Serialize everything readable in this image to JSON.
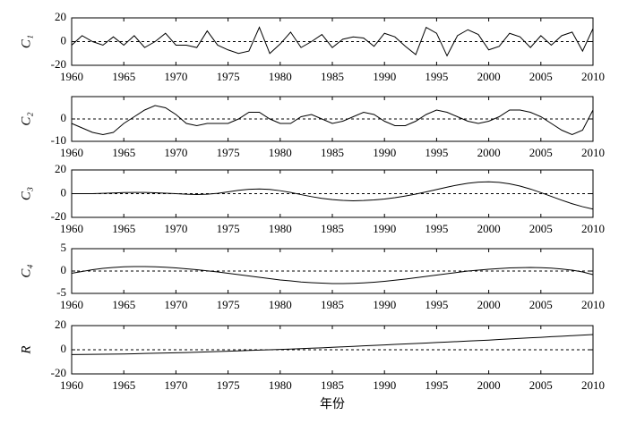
{
  "chart_data": [
    {
      "type": "line",
      "ylabel": "C₁",
      "color": "#000",
      "x": [
        1960,
        1961,
        1962,
        1963,
        1964,
        1965,
        1966,
        1967,
        1968,
        1969,
        1970,
        1971,
        1972,
        1973,
        1974,
        1975,
        1976,
        1977,
        1978,
        1979,
        1980,
        1981,
        1982,
        1983,
        1984,
        1985,
        1986,
        1987,
        1988,
        1989,
        1990,
        1991,
        1992,
        1993,
        1994,
        1995,
        1996,
        1997,
        1998,
        1999,
        2000,
        2001,
        2002,
        2003,
        2004,
        2005,
        2006,
        2007,
        2008,
        2009,
        2010
      ],
      "values": [
        -3,
        5,
        0,
        -3,
        4,
        -3,
        5,
        -5,
        0,
        7,
        -3,
        -3,
        -5,
        9,
        -3,
        -7,
        -10,
        -8,
        12,
        -10,
        -2,
        8,
        -5,
        0,
        6,
        -5,
        2,
        4,
        3,
        -4,
        7,
        4,
        -4,
        -11,
        12,
        7,
        -12,
        5,
        10,
        6,
        -7,
        -4,
        7,
        4,
        -5,
        5,
        -3,
        5,
        8,
        -8,
        11
      ],
      "xlim": [
        1960,
        2010
      ],
      "xticks": [
        1960,
        1965,
        1970,
        1975,
        1980,
        1985,
        1990,
        1995,
        2000,
        2005,
        2010
      ],
      "ylim": [
        -20,
        20
      ],
      "yticks": [
        -20,
        0,
        20
      ]
    },
    {
      "type": "line",
      "ylabel": "C₂",
      "color": "#000",
      "x": [
        1960,
        1961,
        1962,
        1963,
        1964,
        1965,
        1966,
        1967,
        1968,
        1969,
        1970,
        1971,
        1972,
        1973,
        1974,
        1975,
        1976,
        1977,
        1978,
        1979,
        1980,
        1981,
        1982,
        1983,
        1984,
        1985,
        1986,
        1987,
        1988,
        1989,
        1990,
        1991,
        1992,
        1993,
        1994,
        1995,
        1996,
        1997,
        1998,
        1999,
        2000,
        2001,
        2002,
        2003,
        2004,
        2005,
        2006,
        2007,
        2008,
        2009,
        2010
      ],
      "values": [
        -2,
        -4,
        -6,
        -7,
        -6,
        -2,
        1,
        4,
        6,
        5,
        2,
        -2,
        -3,
        -2,
        -2,
        -2,
        0,
        3,
        3,
        0,
        -2,
        -2,
        1,
        2,
        0,
        -2,
        -1,
        1,
        3,
        2,
        -1,
        -3,
        -3,
        -1,
        2,
        4,
        3,
        1,
        -1,
        -2,
        -1,
        1,
        4,
        4,
        3,
        1,
        -2,
        -5,
        -7,
        -5,
        4
      ],
      "xlim": [
        1960,
        2010
      ],
      "xticks": [
        1960,
        1965,
        1970,
        1975,
        1980,
        1985,
        1990,
        1995,
        2000,
        2005,
        2010
      ],
      "ylim": [
        -10,
        10
      ],
      "yticks": [
        -10,
        0
      ]
    },
    {
      "type": "line",
      "ylabel": "C₃",
      "color": "#000",
      "x": [
        1960,
        1961,
        1962,
        1963,
        1964,
        1965,
        1966,
        1967,
        1968,
        1969,
        1970,
        1971,
        1972,
        1973,
        1974,
        1975,
        1976,
        1977,
        1978,
        1979,
        1980,
        1981,
        1982,
        1983,
        1984,
        1985,
        1986,
        1987,
        1988,
        1989,
        1990,
        1991,
        1992,
        1993,
        1994,
        1995,
        1996,
        1997,
        1998,
        1999,
        2000,
        2001,
        2002,
        2003,
        2004,
        2005,
        2006,
        2007,
        2008,
        2009,
        2010
      ],
      "values": [
        0,
        0,
        0,
        0.3,
        0.6,
        0.9,
        1,
        1,
        0.8,
        0.4,
        0,
        -0.5,
        -0.8,
        -0.5,
        0.3,
        1.5,
        2.8,
        3.7,
        4,
        3.6,
        2.5,
        1,
        -0.8,
        -2.5,
        -4,
        -5,
        -5.7,
        -6,
        -5.8,
        -5.3,
        -4.5,
        -3.4,
        -2,
        -0.4,
        1.5,
        3.5,
        5.5,
        7.3,
        8.8,
        9.7,
        10,
        9.5,
        8.3,
        6.4,
        3.9,
        0.9,
        -2.3,
        -5.5,
        -8.5,
        -11,
        -13
      ],
      "xlim": [
        1960,
        2010
      ],
      "xticks": [
        1960,
        1965,
        1970,
        1975,
        1980,
        1985,
        1990,
        1995,
        2000,
        2005,
        2010
      ],
      "ylim": [
        -20,
        20
      ],
      "yticks": [
        -20,
        0,
        20
      ]
    },
    {
      "type": "line",
      "ylabel": "C₄",
      "color": "#000",
      "x": [
        1960,
        1961,
        1962,
        1963,
        1964,
        1965,
        1966,
        1967,
        1968,
        1969,
        1970,
        1971,
        1972,
        1973,
        1974,
        1975,
        1976,
        1977,
        1978,
        1979,
        1980,
        1981,
        1982,
        1983,
        1984,
        1985,
        1986,
        1987,
        1988,
        1989,
        1990,
        1991,
        1992,
        1993,
        1994,
        1995,
        1996,
        1997,
        1998,
        1999,
        2000,
        2001,
        2002,
        2003,
        2004,
        2005,
        2006,
        2007,
        2008,
        2009,
        2010
      ],
      "values": [
        -0.5,
        -0.1,
        0.3,
        0.6,
        0.8,
        0.95,
        1,
        1,
        0.95,
        0.85,
        0.7,
        0.5,
        0.3,
        0.05,
        -0.2,
        -0.5,
        -0.8,
        -1.1,
        -1.4,
        -1.7,
        -2,
        -2.2,
        -2.45,
        -2.6,
        -2.7,
        -2.8,
        -2.8,
        -2.75,
        -2.65,
        -2.5,
        -2.3,
        -2.05,
        -1.8,
        -1.5,
        -1.2,
        -0.9,
        -0.6,
        -0.3,
        0,
        0.2,
        0.4,
        0.55,
        0.7,
        0.75,
        0.8,
        0.75,
        0.65,
        0.45,
        0.2,
        -0.2,
        -0.8
      ],
      "xlim": [
        1960,
        2010
      ],
      "xticks": [
        1960,
        1965,
        1970,
        1975,
        1980,
        1985,
        1990,
        1995,
        2000,
        2005,
        2010
      ],
      "ylim": [
        -5,
        5
      ],
      "yticks": [
        -5,
        0,
        5
      ]
    },
    {
      "type": "line",
      "ylabel": "R",
      "xlabel": "年份",
      "color": "#000",
      "x": [
        1960,
        1961,
        1962,
        1963,
        1964,
        1965,
        1966,
        1967,
        1968,
        1969,
        1970,
        1971,
        1972,
        1973,
        1974,
        1975,
        1976,
        1977,
        1978,
        1979,
        1980,
        1981,
        1982,
        1983,
        1984,
        1985,
        1986,
        1987,
        1988,
        1989,
        1990,
        1991,
        1992,
        1993,
        1994,
        1995,
        1996,
        1997,
        1998,
        1999,
        2000,
        2001,
        2002,
        2003,
        2004,
        2005,
        2006,
        2007,
        2008,
        2009,
        2010
      ],
      "values": [
        -4,
        -3.9,
        -3.8,
        -3.7,
        -3.6,
        -3.5,
        -3.3,
        -3.1,
        -2.9,
        -2.7,
        -2.5,
        -2.3,
        -2,
        -1.8,
        -1.5,
        -1.2,
        -0.9,
        -0.6,
        -0.3,
        0,
        0.3,
        0.6,
        0.9,
        1.3,
        1.6,
        2,
        2.4,
        2.8,
        3.2,
        3.6,
        4,
        4.4,
        4.8,
        5.2,
        5.6,
        6,
        6.4,
        6.8,
        7.2,
        7.6,
        8,
        8.5,
        9,
        9.4,
        9.9,
        10.3,
        10.8,
        11.2,
        11.7,
        12.1,
        12.6
      ],
      "xlim": [
        1960,
        2010
      ],
      "xticks": [
        1960,
        1965,
        1970,
        1975,
        1980,
        1985,
        1990,
        1995,
        2000,
        2005,
        2010
      ],
      "ylim": [
        -20,
        20
      ],
      "yticks": [
        -20,
        0,
        20
      ]
    }
  ]
}
